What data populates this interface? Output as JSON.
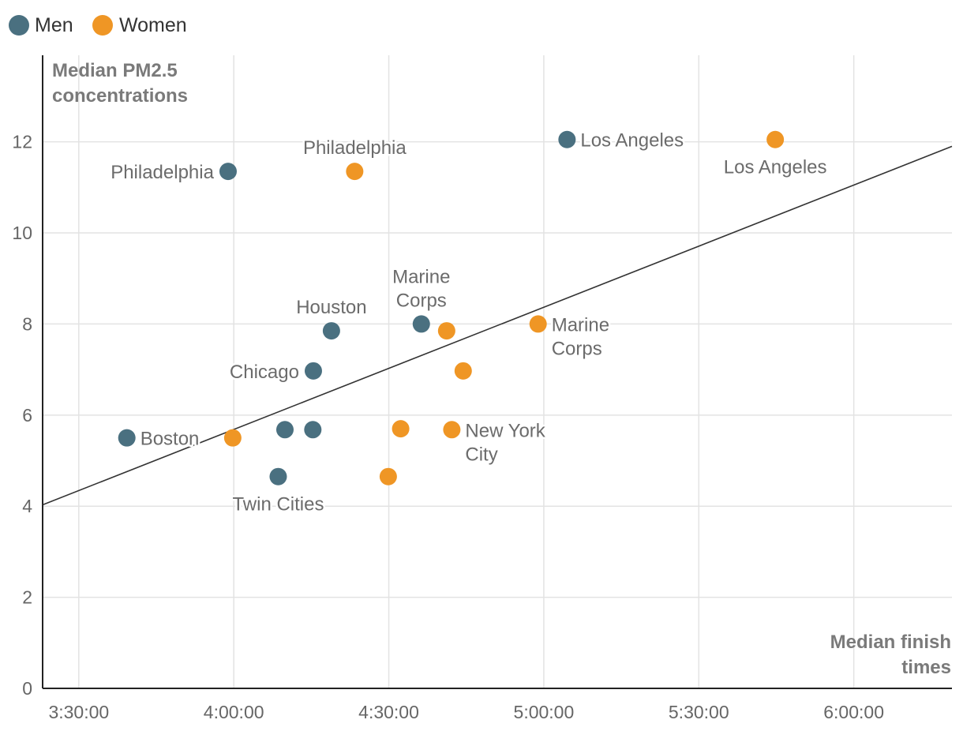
{
  "chart_data": {
    "type": "scatter",
    "x_ticks": [
      "3:30:00",
      "4:00:00",
      "4:30:00",
      "5:00:00",
      "5:30:00",
      "6:00:00"
    ],
    "y_ticks": [
      "0",
      "2",
      "4",
      "6",
      "8",
      "10",
      "12"
    ],
    "xlim_minutes": [
      203,
      379
    ],
    "ylim": [
      0,
      13.9
    ],
    "x_axis_title": [
      "Median finish",
      "times"
    ],
    "y_axis_title": [
      "Median PM2.5",
      "concentrations"
    ],
    "grid": true,
    "legend": {
      "placement": "top-left",
      "entries": [
        {
          "name": "Men",
          "color": "#4a7080"
        },
        {
          "name": "Women",
          "color": "#ef9625"
        }
      ]
    },
    "trend_line": {
      "x": [
        203,
        379
      ],
      "y": [
        4.03,
        11.9
      ]
    },
    "series": [
      {
        "name": "Men",
        "color": "#4a7080",
        "points": [
          {
            "x": 219.3,
            "y": 5.5,
            "label": [
              "Boston"
            ],
            "label_pos": "right"
          },
          {
            "x": 238.9,
            "y": 11.35,
            "label": [
              "Philadelphia"
            ],
            "label_pos": "left"
          },
          {
            "x": 258.9,
            "y": 7.85,
            "label": [
              "Houston"
            ],
            "label_pos": "above"
          },
          {
            "x": 255.4,
            "y": 6.97,
            "label": [
              "Chicago"
            ],
            "label_pos": "left"
          },
          {
            "x": 249.9,
            "y": 5.68,
            "label": [],
            "label_pos": "none"
          },
          {
            "x": 255.3,
            "y": 5.68,
            "label": [],
            "label_pos": "none"
          },
          {
            "x": 248.6,
            "y": 4.65,
            "label": [
              "Twin Cities"
            ],
            "label_pos": "below"
          },
          {
            "x": 276.3,
            "y": 8.0,
            "label": [
              "Marine",
              "Corps"
            ],
            "label_pos": "above"
          },
          {
            "x": 304.5,
            "y": 12.05,
            "label": [
              "Los Angeles"
            ],
            "label_pos": "right"
          }
        ]
      },
      {
        "name": "Women",
        "color": "#ef9625",
        "points": [
          {
            "x": 239.8,
            "y": 5.5,
            "label": [],
            "label_pos": "none"
          },
          {
            "x": 263.4,
            "y": 11.35,
            "label": [
              "Philadelphia"
            ],
            "label_pos": "above"
          },
          {
            "x": 272.3,
            "y": 5.7,
            "label": [],
            "label_pos": "none"
          },
          {
            "x": 269.9,
            "y": 4.65,
            "label": [],
            "label_pos": "none"
          },
          {
            "x": 281.2,
            "y": 7.85,
            "label": [],
            "label_pos": "none"
          },
          {
            "x": 284.4,
            "y": 6.97,
            "label": [],
            "label_pos": "none"
          },
          {
            "x": 282.2,
            "y": 5.68,
            "label": [
              "New York",
              "City"
            ],
            "label_pos": "right"
          },
          {
            "x": 298.9,
            "y": 8.0,
            "label": [
              "Marine",
              "Corps"
            ],
            "label_pos": "right"
          },
          {
            "x": 344.8,
            "y": 12.05,
            "label": [
              "Los Angeles"
            ],
            "label_pos": "below"
          }
        ]
      }
    ]
  }
}
